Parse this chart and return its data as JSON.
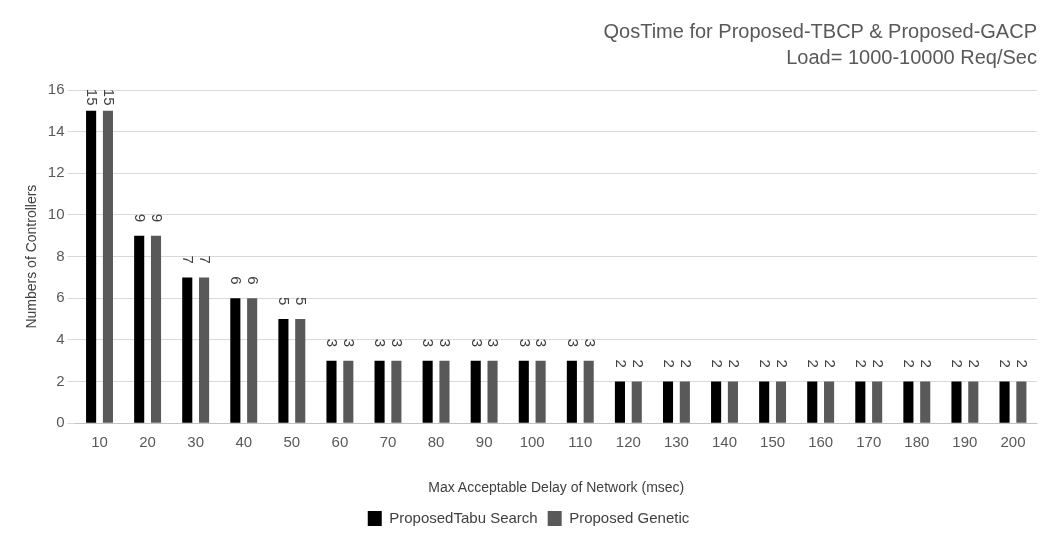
{
  "chart_data": {
    "type": "bar",
    "title": "QosTime for Proposed-TBCP & Proposed-GACP",
    "subtitle": "Load= 1000-10000 Req/Sec",
    "xlabel": "Max Acceptable Delay of Network (msec)",
    "ylabel": "Numbers of Controllers",
    "categories": [
      "10",
      "20",
      "30",
      "40",
      "50",
      "60",
      "70",
      "80",
      "90",
      "100",
      "110",
      "120",
      "130",
      "140",
      "150",
      "160",
      "170",
      "180",
      "190",
      "200"
    ],
    "series": [
      {
        "name": "ProposedTabu Search",
        "color": "#000000",
        "values": [
          15,
          9,
          7,
          6,
          5,
          3,
          3,
          3,
          3,
          3,
          3,
          2,
          2,
          2,
          2,
          2,
          2,
          2,
          2,
          2
        ]
      },
      {
        "name": "Proposed Genetic",
        "color": "#595959",
        "values": [
          15,
          9,
          7,
          6,
          5,
          3,
          3,
          3,
          3,
          3,
          3,
          2,
          2,
          2,
          2,
          2,
          2,
          2,
          2,
          2
        ]
      }
    ],
    "ylim": [
      0,
      16
    ],
    "yticks": [
      0,
      2,
      4,
      6,
      8,
      10,
      12,
      14,
      16
    ],
    "grid": "y",
    "legend": "bottom",
    "data_labels": true
  }
}
